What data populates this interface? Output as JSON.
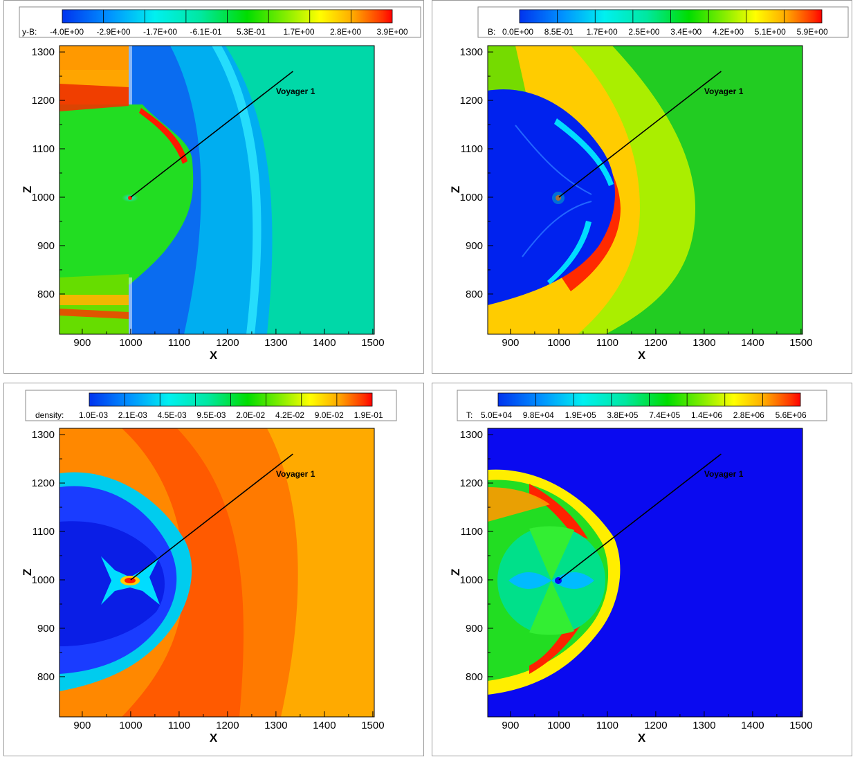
{
  "chart_data": [
    {
      "type": "heatmap",
      "variable": "y-B",
      "legend_label": "y-B:",
      "colorbar_ticks": [
        "-4.0E+00",
        "-2.9E+00",
        "-1.7E+00",
        "-6.1E-01",
        "5.3E-01",
        "1.7E+00",
        "2.8E+00",
        "3.9E+00"
      ],
      "xlabel": "X",
      "ylabel": "Z",
      "xlim": [
        853,
        1503
      ],
      "ylim": [
        717,
        1313
      ],
      "xticks": [
        "900",
        "1000",
        "1100",
        "1200",
        "1300",
        "1400",
        "1500"
      ],
      "yticks": [
        "800",
        "900",
        "1000",
        "1100",
        "1200",
        "1300"
      ],
      "trajectory": {
        "label": "Voyager 1",
        "x": [
          1000,
          1335
        ],
        "y": [
          1000,
          1260
        ]
      },
      "legend_position": "top"
    },
    {
      "type": "heatmap",
      "variable": "B",
      "legend_label": "B:",
      "colorbar_ticks": [
        "0.0E+00",
        "8.5E-01",
        "1.7E+00",
        "2.5E+00",
        "3.4E+00",
        "4.2E+00",
        "5.1E+00",
        "5.9E+00"
      ],
      "xlabel": "X",
      "ylabel": "Z",
      "xlim": [
        853,
        1503
      ],
      "ylim": [
        717,
        1313
      ],
      "xticks": [
        "900",
        "1000",
        "1100",
        "1200",
        "1300",
        "1400",
        "1500"
      ],
      "yticks": [
        "800",
        "900",
        "1000",
        "1100",
        "1200",
        "1300"
      ],
      "trajectory": {
        "label": "Voyager 1",
        "x": [
          1000,
          1335
        ],
        "y": [
          1000,
          1260
        ]
      },
      "legend_position": "top"
    },
    {
      "type": "heatmap",
      "variable": "density",
      "legend_label": "density:",
      "colorbar_ticks": [
        "1.0E-03",
        "2.1E-03",
        "4.5E-03",
        "9.5E-03",
        "2.0E-02",
        "4.2E-02",
        "9.0E-02",
        "1.9E-01"
      ],
      "xlabel": "X",
      "ylabel": "Z",
      "xlim": [
        853,
        1503
      ],
      "ylim": [
        717,
        1313
      ],
      "xticks": [
        "900",
        "1000",
        "1100",
        "1200",
        "1300",
        "1400",
        "1500"
      ],
      "yticks": [
        "800",
        "900",
        "1000",
        "1100",
        "1200",
        "1300"
      ],
      "trajectory": {
        "label": "Voyager 1",
        "x": [
          1000,
          1335
        ],
        "y": [
          1000,
          1260
        ]
      },
      "legend_position": "top"
    },
    {
      "type": "heatmap",
      "variable": "T",
      "legend_label": "T:",
      "colorbar_ticks": [
        "5.0E+04",
        "9.8E+04",
        "1.9E+05",
        "3.8E+05",
        "7.4E+05",
        "1.4E+06",
        "2.8E+06",
        "5.6E+06"
      ],
      "xlabel": "X",
      "ylabel": "Z",
      "xlim": [
        853,
        1503
      ],
      "ylim": [
        717,
        1313
      ],
      "xticks": [
        "900",
        "1000",
        "1100",
        "1200",
        "1300",
        "1400",
        "1500"
      ],
      "yticks": [
        "800",
        "900",
        "1000",
        "1100",
        "1200",
        "1300"
      ],
      "trajectory": {
        "label": "Voyager 1",
        "x": [
          1000,
          1335
        ],
        "y": [
          1000,
          1260
        ]
      },
      "legend_position": "top"
    }
  ]
}
